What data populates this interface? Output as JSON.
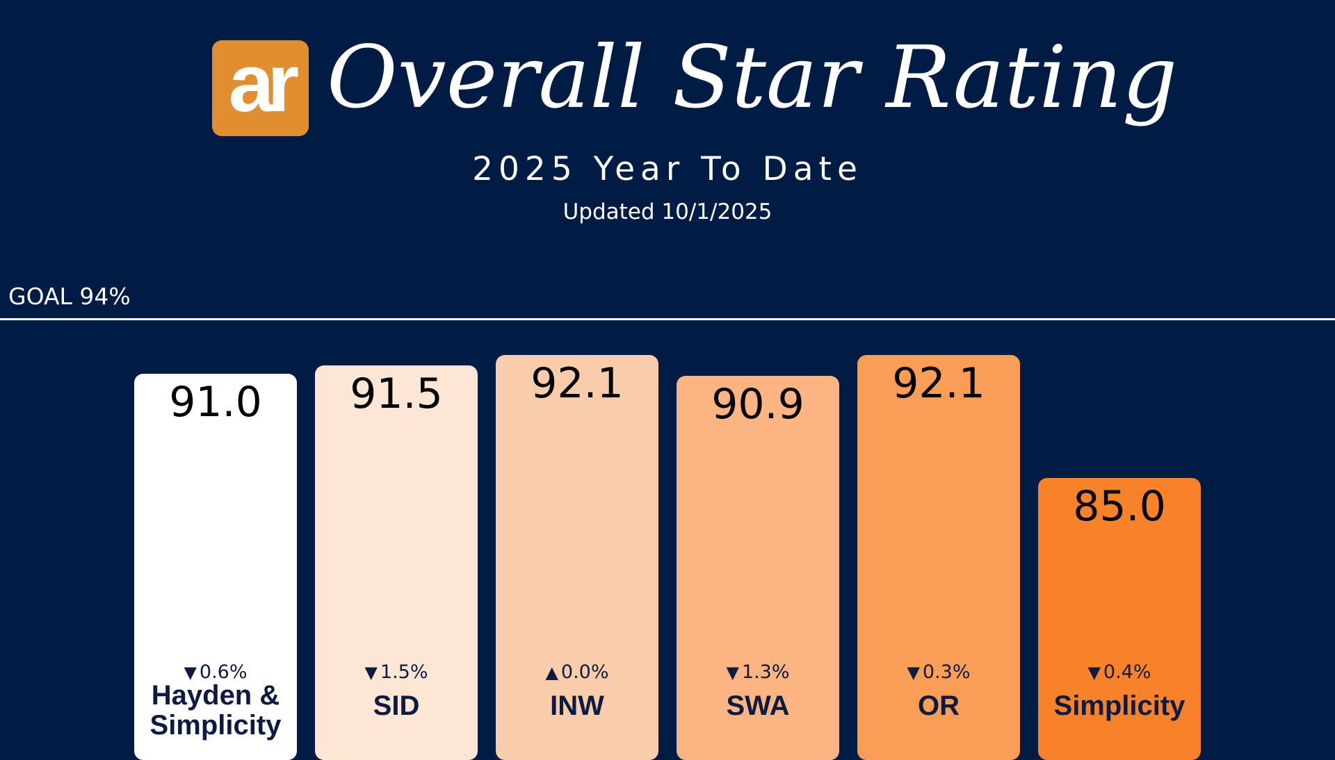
{
  "header": {
    "logo_text": "ar",
    "title": "Overall Star Rating",
    "subtitle": "2025 Year To Date",
    "updated": "Updated 10/1/2025"
  },
  "goal": {
    "label": "GOAL 94%",
    "value": 94
  },
  "colors": {
    "background": "#001c45",
    "logo": "#e08e2f",
    "text_dark": "#0d1b40"
  },
  "chart_data": {
    "type": "bar",
    "title": "Overall Star Rating",
    "subtitle": "2025 Year To Date",
    "ylabel": "",
    "xlabel": "",
    "goal": 94,
    "categories": [
      "Hayden & Simplicity",
      "SID",
      "INW",
      "SWA",
      "OR",
      "Simplicity"
    ],
    "values": [
      91.0,
      91.5,
      92.1,
      90.9,
      92.1,
      85.0
    ],
    "value_labels": [
      "91.0",
      "91.5",
      "92.1",
      "90.9",
      "92.1",
      "85.0"
    ],
    "changes": [
      {
        "direction": "down",
        "arrow": "▼",
        "text": "0.6%"
      },
      {
        "direction": "down",
        "arrow": "▼",
        "text": "1.5%"
      },
      {
        "direction": "up",
        "arrow": "▲",
        "text": "0.0%"
      },
      {
        "direction": "down",
        "arrow": "▼",
        "text": "1.3%"
      },
      {
        "direction": "down",
        "arrow": "▼",
        "text": "0.3%"
      },
      {
        "direction": "down",
        "arrow": "▼",
        "text": "0.4%"
      }
    ],
    "bar_colors": [
      "#ffffff",
      "#fde6d4",
      "#f9cdab",
      "#fbb482",
      "#fa9d56",
      "#f7822a"
    ]
  }
}
